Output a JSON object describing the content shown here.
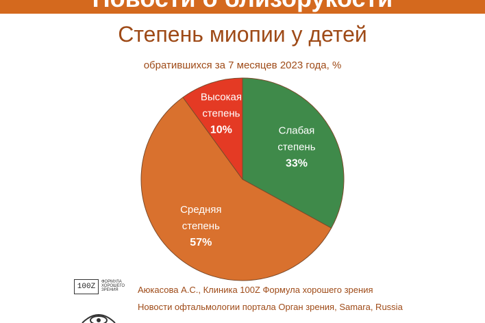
{
  "header": {
    "banner_text": "Новости о близорукости"
  },
  "chart_data": {
    "type": "pie",
    "title": "Степень миопии у детей",
    "subtitle": "обратившихся за 7 месяцев 2023 года, %",
    "slices": [
      {
        "label_line1": "Слабая",
        "label_line2": "степень",
        "value": 33,
        "value_label": "33%",
        "color": "#3f8a4a"
      },
      {
        "label_line1": "Средняя",
        "label_line2": "степень",
        "value": 57,
        "value_label": "57%",
        "color": "#d9712e"
      },
      {
        "label_line1": "Высокая",
        "label_line2": "степень",
        "value": 10,
        "value_label": "10%",
        "color": "#e43a24"
      }
    ]
  },
  "footer": {
    "logo_mark": "100Z",
    "logo_words": "Формула хорошего зрения",
    "credit": "Аюкасова А.С., Клиника 100Z Формула хорошего зрения",
    "source": "Новости офтальмологии портала Орган зрения, Samara, Russia"
  },
  "colors": {
    "accent": "#d4691e",
    "title": "#9e4a17",
    "slice_stroke": "#7a4a2a"
  }
}
